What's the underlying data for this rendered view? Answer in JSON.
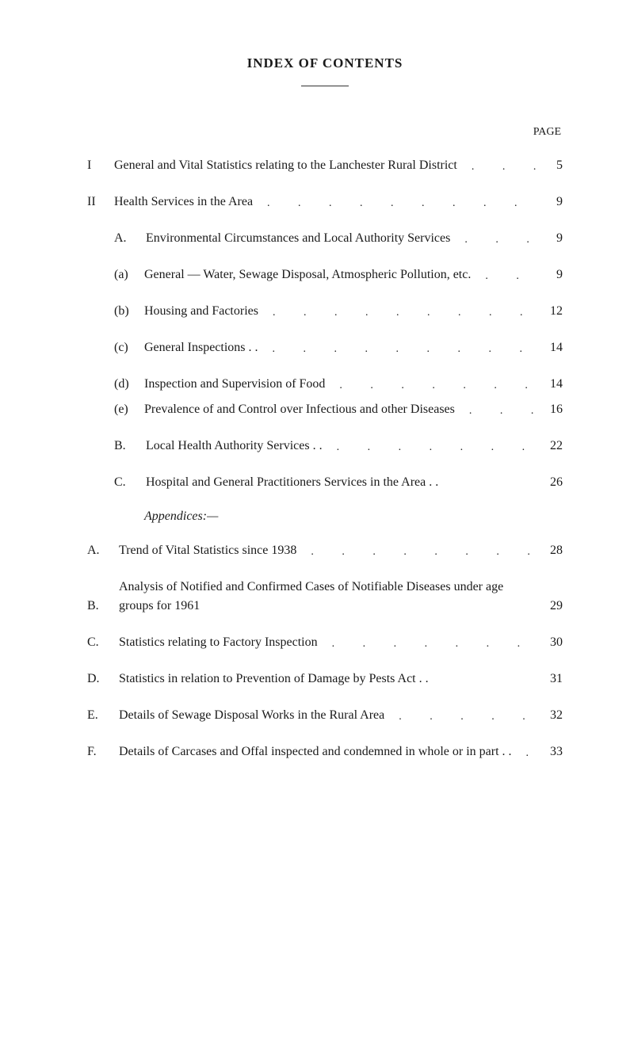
{
  "title": "INDEX OF CONTENTS",
  "page_label": "PAGE",
  "appendices_label": "Appendices:—",
  "roman": {
    "I": {
      "marker": "I",
      "text": "General and Vital Statistics relating to the Lanchester Rural District",
      "page": "5"
    },
    "II": {
      "marker": "II",
      "text": "Health Services in the Area",
      "page": "9"
    }
  },
  "sub_II": {
    "A": {
      "marker": "A.",
      "text": "Environmental Circumstances and Local Authority Services",
      "page": "9"
    },
    "a": {
      "marker": "(a)",
      "text": "General — Water, Sewage Disposal, Atmospheric Pollution, etc.",
      "page": "9"
    },
    "b": {
      "marker": "(b)",
      "text": "Housing and Factories",
      "page": "12"
    },
    "c": {
      "marker": "(c)",
      "text": "General Inspections . .",
      "page": "14"
    },
    "d": {
      "marker": "(d)",
      "text": "Inspection and Supervision of Food",
      "page": "14"
    },
    "e": {
      "marker": "(e)",
      "text": "Prevalence of and Control over Infectious and other Diseases",
      "page": "16"
    },
    "B": {
      "marker": "B.",
      "text": "Local Health Authority Services . .",
      "page": "22"
    },
    "C": {
      "marker": "C.",
      "text": "Hospital and General Practitioners Services in the Area . .",
      "page": "26"
    }
  },
  "appendix": {
    "A": {
      "marker": "A.",
      "text": "Trend of Vital Statistics since 1938",
      "page": "28"
    },
    "B": {
      "marker": "B.",
      "text": "Analysis of Notified and Confirmed Cases of Notifiable Diseases under age groups for 1961",
      "page": "29"
    },
    "C": {
      "marker": "C.",
      "text": "Statistics relating to Factory Inspection",
      "page": "30"
    },
    "D": {
      "marker": "D.",
      "text": "Statistics in relation to Prevention of Damage by Pests Act . .",
      "page": "31"
    },
    "E": {
      "marker": "E.",
      "text": "Details of Sewage Disposal Works in the Rural Area",
      "page": "32"
    },
    "F": {
      "marker": "F.",
      "text": "Details of Carcases and Offal inspected and condemned in whole or in part . .",
      "page": "33"
    }
  },
  "dots": ". . . . . . . . . . . . . . . . . ."
}
